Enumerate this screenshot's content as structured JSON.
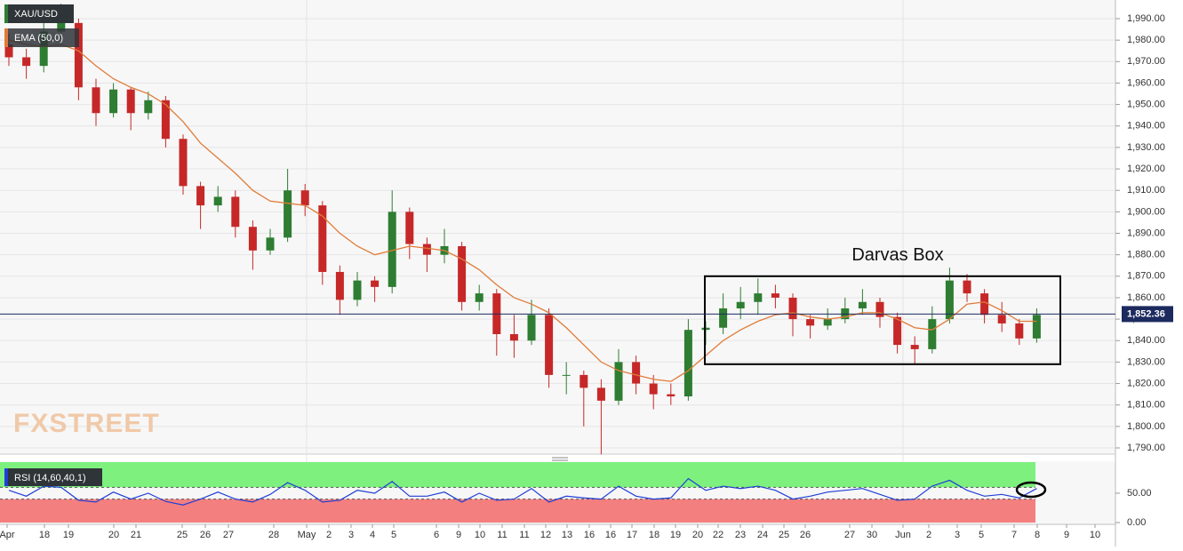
{
  "chart_data": [
    {
      "type": "candlestick",
      "title": "XAU/USD",
      "watermark": "FXSTREET",
      "open": [
        1978,
        1972,
        1968,
        1984,
        1988,
        1958,
        1946,
        1957,
        1946,
        1952,
        1934,
        1912,
        1903,
        1907,
        1893,
        1882,
        1888,
        1910,
        1903,
        1872,
        1859,
        1868,
        1865,
        1900,
        1885,
        1880,
        1884,
        1858,
        1862,
        1843,
        1840,
        1852,
        1824,
        1824,
        1818,
        1812,
        1830,
        1820,
        1815,
        1814,
        1845,
        1846,
        1855,
        1858,
        1862,
        1860,
        1850,
        1847,
        1850,
        1855,
        1858,
        1851,
        1838,
        1836,
        1850,
        1868,
        1862,
        1852,
        1848,
        1841
      ],
      "high": [
        1983,
        1976,
        1990,
        1997,
        1990,
        1962,
        1960,
        1958,
        1956,
        1954,
        1936,
        1914,
        1912,
        1910,
        1896,
        1892,
        1920,
        1913,
        1905,
        1875,
        1872,
        1870,
        1910,
        1902,
        1888,
        1892,
        1886,
        1866,
        1864,
        1852,
        1859,
        1855,
        1830,
        1826,
        1822,
        1836,
        1833,
        1824,
        1820,
        1850,
        1849,
        1862,
        1865,
        1869,
        1866,
        1862,
        1852,
        1855,
        1860,
        1864,
        1860,
        1853,
        1842,
        1856,
        1874,
        1871,
        1864,
        1858,
        1850,
        1855
      ],
      "low": [
        1968,
        1962,
        1965,
        1978,
        1952,
        1940,
        1944,
        1938,
        1943,
        1930,
        1908,
        1892,
        1900,
        1888,
        1873,
        1880,
        1886,
        1898,
        1866,
        1852,
        1856,
        1858,
        1862,
        1878,
        1872,
        1876,
        1854,
        1854,
        1833,
        1832,
        1838,
        1818,
        1815,
        1800,
        1787,
        1810,
        1815,
        1808,
        1810,
        1812,
        1838,
        1843,
        1850,
        1852,
        1855,
        1842,
        1841,
        1845,
        1848,
        1852,
        1846,
        1834,
        1829,
        1834,
        1848,
        1858,
        1848,
        1844,
        1838,
        1839
      ],
      "close": [
        1972,
        1968,
        1984,
        1988,
        1958,
        1946,
        1957,
        1946,
        1952,
        1934,
        1912,
        1903,
        1907,
        1893,
        1882,
        1888,
        1910,
        1903,
        1872,
        1859,
        1868,
        1865,
        1900,
        1885,
        1880,
        1884,
        1858,
        1862,
        1843,
        1840,
        1852,
        1824,
        1824,
        1818,
        1812,
        1830,
        1820,
        1815,
        1814,
        1845,
        1846,
        1855,
        1858,
        1862,
        1860,
        1850,
        1847,
        1850,
        1855,
        1858,
        1851,
        1838,
        1836,
        1850,
        1868,
        1862,
        1852,
        1848,
        1841,
        1852
      ],
      "up_color": "#2e7d32",
      "down_color": "#c62828",
      "series": [
        {
          "name": "EMA (50,0)",
          "color": "#e07b39",
          "values": [
            1980,
            1978,
            1977,
            1978,
            1975,
            1968,
            1962,
            1958,
            1955,
            1950,
            1942,
            1932,
            1925,
            1918,
            1910,
            1905,
            1904,
            1903,
            1898,
            1890,
            1884,
            1880,
            1882,
            1884,
            1883,
            1882,
            1878,
            1873,
            1866,
            1860,
            1857,
            1853,
            1846,
            1838,
            1830,
            1826,
            1824,
            1822,
            1821,
            1826,
            1833,
            1840,
            1845,
            1849,
            1852,
            1853,
            1851,
            1850,
            1851,
            1853,
            1853,
            1850,
            1846,
            1845,
            1850,
            1857,
            1858,
            1854,
            1849,
            1849
          ]
        }
      ],
      "ylim": [
        1787.1,
        1998.7
      ],
      "yticks": [
        {
          "value": 1790,
          "label": "1,790.00"
        },
        {
          "value": 1800,
          "label": "1,800.00"
        },
        {
          "value": 1810,
          "label": "1,810.00"
        },
        {
          "value": 1820,
          "label": "1,820.00"
        },
        {
          "value": 1830,
          "label": "1,830.00"
        },
        {
          "value": 1840,
          "label": "1,840.00"
        },
        {
          "value": 1850,
          "label": "1,850.00"
        },
        {
          "value": 1860,
          "label": "1,860.00"
        },
        {
          "value": 1870,
          "label": "1,870.00"
        },
        {
          "value": 1880,
          "label": "1,880.00"
        },
        {
          "value": 1890,
          "label": "1,890.00"
        },
        {
          "value": 1900,
          "label": "1,900.00"
        },
        {
          "value": 1910,
          "label": "1,910.00"
        },
        {
          "value": 1920,
          "label": "1,920.00"
        },
        {
          "value": 1930,
          "label": "1,930.00"
        },
        {
          "value": 1940,
          "label": "1,940.00"
        },
        {
          "value": 1950,
          "label": "1,950.00"
        },
        {
          "value": 1960,
          "label": "1,960.00"
        },
        {
          "value": 1970,
          "label": "1,970.00"
        },
        {
          "value": 1980,
          "label": "1,980.00"
        },
        {
          "value": 1990,
          "label": "1,990.00"
        }
      ],
      "grid": true,
      "last_price": {
        "value": 1852.36,
        "label": "1,852.36"
      },
      "annotation": {
        "text": "Darvas Box",
        "ylim": [
          1829,
          1870
        ]
      },
      "x_labels": [
        "Apr",
        "18",
        "19",
        "20",
        "21",
        "25",
        "26",
        "27",
        "28",
        "May",
        "2",
        "3",
        "4",
        "5",
        "6",
        "9",
        "10",
        "11",
        "11",
        "12",
        "13",
        "16",
        "16",
        "17",
        "18",
        "19",
        "20",
        "22",
        "23",
        "24",
        "25",
        "26",
        "27",
        "30",
        "Jun",
        "2",
        "3",
        "5",
        "7",
        "8",
        "9",
        "10"
      ]
    },
    {
      "type": "line",
      "series": [
        {
          "name": "RSI (14,60,40,1)",
          "color": "#1f3fd6",
          "values": [
            55,
            45,
            62,
            60,
            38,
            35,
            52,
            40,
            50,
            36,
            30,
            40,
            52,
            40,
            35,
            48,
            68,
            55,
            35,
            38,
            55,
            50,
            70,
            45,
            45,
            52,
            35,
            50,
            38,
            40,
            58,
            35,
            45,
            42,
            40,
            62,
            45,
            40,
            42,
            75,
            55,
            62,
            58,
            62,
            55,
            40,
            45,
            52,
            55,
            58,
            48,
            38,
            40,
            62,
            72,
            55,
            45,
            48,
            42,
            58
          ]
        }
      ],
      "ylim": [
        0,
        103
      ],
      "yticks": [
        {
          "value": 0,
          "label": "0.00"
        },
        {
          "value": 50,
          "label": "50.00"
        }
      ],
      "bands": [
        {
          "ylim": [
            60,
            103
          ],
          "color": "#7ef07e"
        },
        {
          "ylim": [
            0,
            40
          ],
          "color": "#f47f7f"
        }
      ]
    }
  ]
}
